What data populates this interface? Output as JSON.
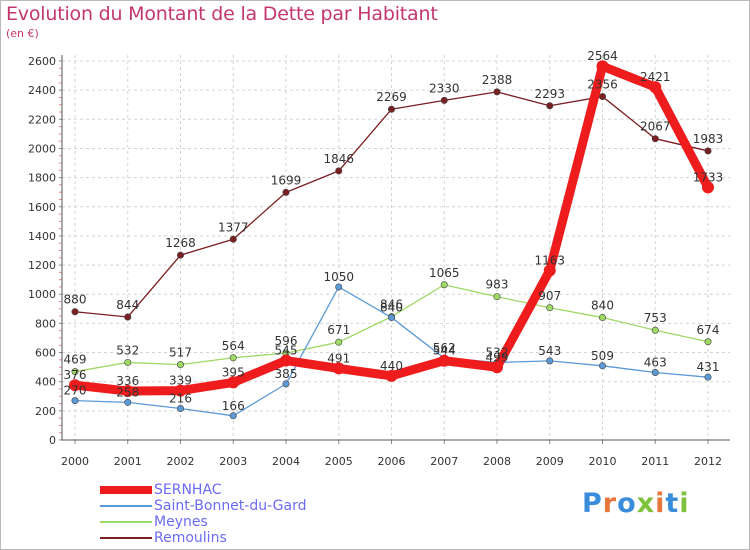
{
  "header": {
    "title": "Evolution du Montant de la Dette par Habitant",
    "subtitle": "(en €)"
  },
  "brand": {
    "text": "Proxiti",
    "letter_colors": [
      "#3a8ddb",
      "#e8783a",
      "#3a8ddb",
      "#7ec23c",
      "#e8783a",
      "#3a8ddb",
      "#7ec23c"
    ]
  },
  "chart_data": {
    "type": "line",
    "title": "Evolution du Montant de la Dette par Habitant",
    "subtitle": "(en €)",
    "xlabel": "",
    "ylabel": "",
    "categories": [
      "2000",
      "2001",
      "2002",
      "2003",
      "2004",
      "2005",
      "2006",
      "2007",
      "2008",
      "2009",
      "2010",
      "2011",
      "2012"
    ],
    "ylim": [
      0,
      2600
    ],
    "yticks": [
      0,
      200,
      400,
      600,
      800,
      1000,
      1200,
      1400,
      1600,
      1800,
      2000,
      2200,
      2400,
      2600
    ],
    "grid": true,
    "legend_position": "bottom-left",
    "series": [
      {
        "name": "SERNHAC",
        "color": "#ee1c1c",
        "values": [
          376,
          336,
          339,
          395,
          545,
          491,
          440,
          544,
          499,
          1163,
          2564,
          2421,
          1733
        ],
        "labels": [
          "376",
          "336",
          "339",
          "395",
          "545",
          "491",
          "440",
          "544",
          "499",
          "1163",
          "2564",
          "2421",
          "1733"
        ]
      },
      {
        "name": "Saint-Bonnet-du-Gard",
        "color": "#5c9ad6",
        "values": [
          270,
          258,
          216,
          166,
          385,
          1050,
          840,
          562,
          532,
          543,
          509,
          463,
          431
        ],
        "labels": [
          "270",
          "258",
          "216",
          "166",
          "385",
          "1050",
          "840",
          "562",
          "532",
          "543",
          "509",
          "463",
          "431"
        ]
      },
      {
        "name": "Meynes",
        "color": "#9ed865",
        "values": [
          469,
          532,
          517,
          564,
          596,
          671,
          846,
          1065,
          983,
          907,
          840,
          753,
          674
        ],
        "labels": [
          "469",
          "532",
          "517",
          "564",
          "596",
          "671",
          "846",
          "1065",
          "983",
          "907",
          "840",
          "753",
          "674"
        ]
      },
      {
        "name": "Remoulins",
        "color": "#7a1f22",
        "values": [
          880,
          844,
          1268,
          1377,
          1699,
          1846,
          2269,
          2330,
          2388,
          2293,
          2356,
          2067,
          1983
        ],
        "labels": [
          "880",
          "844",
          "1268",
          "1377",
          "1699",
          "1846",
          "2269",
          "2330",
          "2388",
          "2293",
          "2356",
          "2067",
          "1983"
        ]
      }
    ]
  }
}
